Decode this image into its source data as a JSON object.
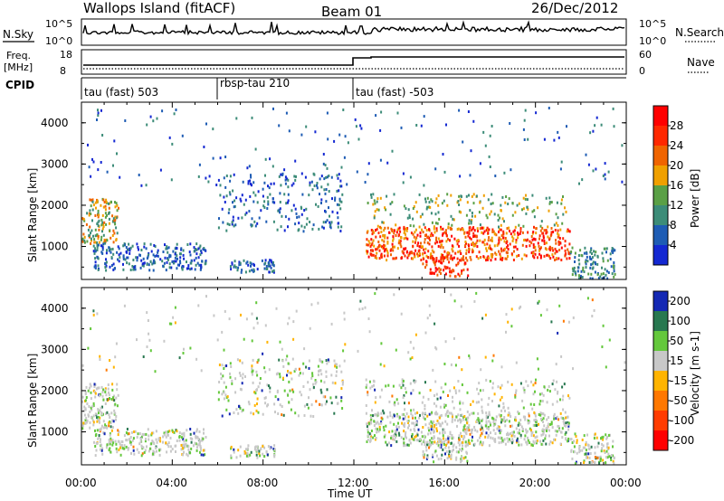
{
  "header": {
    "station": "Wallops Island (fitACF)",
    "beam": "Beam 01",
    "date": "26/Dec/2012"
  },
  "nsky_panel": {
    "left_label": "N.Sky",
    "right_label": "N.Search",
    "left_ticks": [
      "10^5",
      "10^0"
    ],
    "right_ticks": [
      "10^5",
      "10^0"
    ]
  },
  "freq_panel": {
    "left_label_1": "Freq.",
    "left_label_2": "[MHz]",
    "right_label": "Nave",
    "left_ticks": [
      "18",
      "8"
    ],
    "right_ticks": [
      "60",
      "0"
    ]
  },
  "cpid_panel": {
    "label": "CPID",
    "segments": [
      {
        "label": "tau (fast) 503"
      },
      {
        "label": "rbsp-tau 210"
      },
      {
        "label": "tau (fast) -503"
      }
    ]
  },
  "x_axis": {
    "title": "Time UT",
    "ticks": [
      "00:00",
      "04:00",
      "08:00",
      "12:00",
      "16:00",
      "20:00",
      "00:00"
    ]
  },
  "colors": {
    "power_scale": [
      "#1428d2",
      "#1e5cb4",
      "#3c8c78",
      "#5aa046",
      "#f0a000",
      "#f06400",
      "#ff2800",
      "#ff0000"
    ],
    "velocity_scale": [
      "#1428b4",
      "#287850",
      "#64c83c",
      "#c8c8c8",
      "#ffb400",
      "#ff7800",
      "#ff3c00",
      "#ff0000"
    ]
  },
  "chart_data": [
    {
      "type": "heatmap",
      "ylabel": "Slant Range [km]",
      "yticks": [
        "1000",
        "2000",
        "3000",
        "4000"
      ],
      "ylim": [
        200,
        4500
      ],
      "colorbar_label": "Power [dB]",
      "colorbar_ticks": [
        "4",
        "8",
        "12",
        "16",
        "20",
        "24",
        "28"
      ],
      "xlim_hours": [
        0,
        24
      ]
    },
    {
      "type": "heatmap",
      "ylabel": "Slant Range [km]",
      "yticks": [
        "1000",
        "2000",
        "3000",
        "4000"
      ],
      "ylim": [
        200,
        4500
      ],
      "colorbar_label": "Velocity [m s-1]",
      "colorbar_ticks": [
        "200",
        "100",
        "50",
        "15",
        "-15",
        "-50",
        "-100",
        "-200"
      ],
      "xlim_hours": [
        0,
        24
      ]
    }
  ]
}
